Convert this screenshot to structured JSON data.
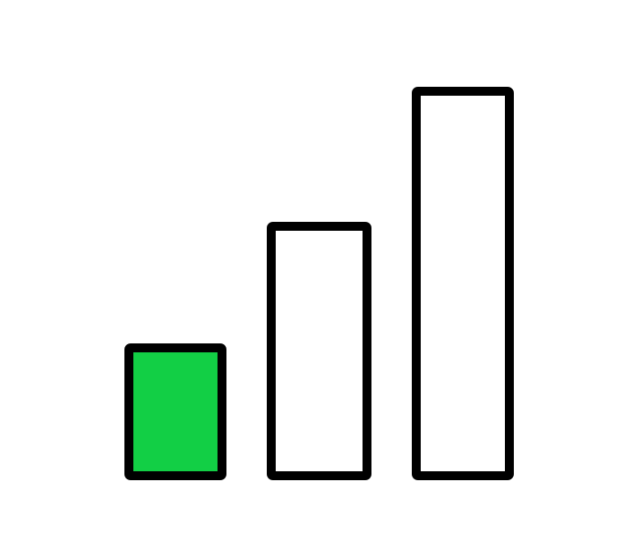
{
  "indicator": {
    "type": "signal-strength-bars",
    "total_bars": 3,
    "active_bars": 1,
    "colors": {
      "active_fill": "#12cf45",
      "inactive_fill": "#ffffff",
      "outline": "#000000",
      "background": "#ffffff"
    },
    "icon": "signal-strength-icon"
  }
}
